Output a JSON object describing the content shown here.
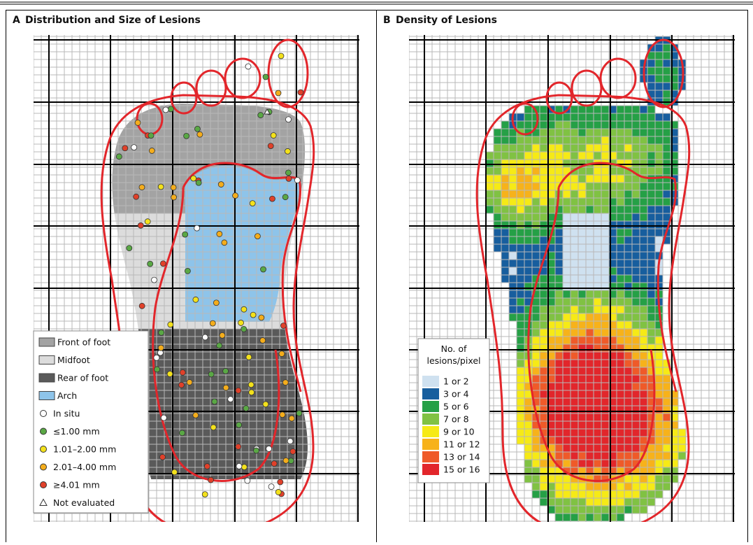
{
  "panels": [
    {
      "letter": "A",
      "title": "Distribution and Size of Lesions",
      "legend": [
        {
          "label": "Front of foot",
          "marker": "square",
          "color": "#a3a3a3"
        },
        {
          "label": "Midfoot",
          "marker": "square",
          "color": "#dcdcdc"
        },
        {
          "label": "Rear of foot",
          "marker": "square",
          "color": "#5a5a5a"
        },
        {
          "label": "Arch",
          "marker": "square",
          "color": "#8ec4ea"
        },
        {
          "label": "In situ",
          "marker": "circle",
          "color": "#ffffff"
        },
        {
          "label": "≤1.00 mm",
          "marker": "circle",
          "color": "#5aa845"
        },
        {
          "label": "1.01–2.00 mm",
          "marker": "circle",
          "color": "#f3e11c"
        },
        {
          "label": "2.01–4.00 mm",
          "marker": "circle",
          "color": "#f4ad1c"
        },
        {
          "label": "≥4.01 mm",
          "marker": "circle",
          "color": "#e0412a"
        },
        {
          "label": "Not evaluated",
          "marker": "triangle",
          "color": "#ffffff"
        }
      ]
    },
    {
      "letter": "B",
      "title": "Density of Lesions",
      "legend_title": [
        "No. of",
        "lesions/pixel"
      ],
      "legend": [
        {
          "label": "1 or 2",
          "color": "#cfe1f0"
        },
        {
          "label": "3 or 4",
          "color": "#175e9e"
        },
        {
          "label": "5 or 6",
          "color": "#25a046"
        },
        {
          "label": "7 or 8",
          "color": "#80c243"
        },
        {
          "label": "9 or 10",
          "color": "#f6ea16"
        },
        {
          "label": "11 or 12",
          "color": "#f7b21a"
        },
        {
          "label": "13 or 14",
          "color": "#ef5a29"
        },
        {
          "label": "15 or 16",
          "color": "#e2262b"
        }
      ]
    }
  ]
}
